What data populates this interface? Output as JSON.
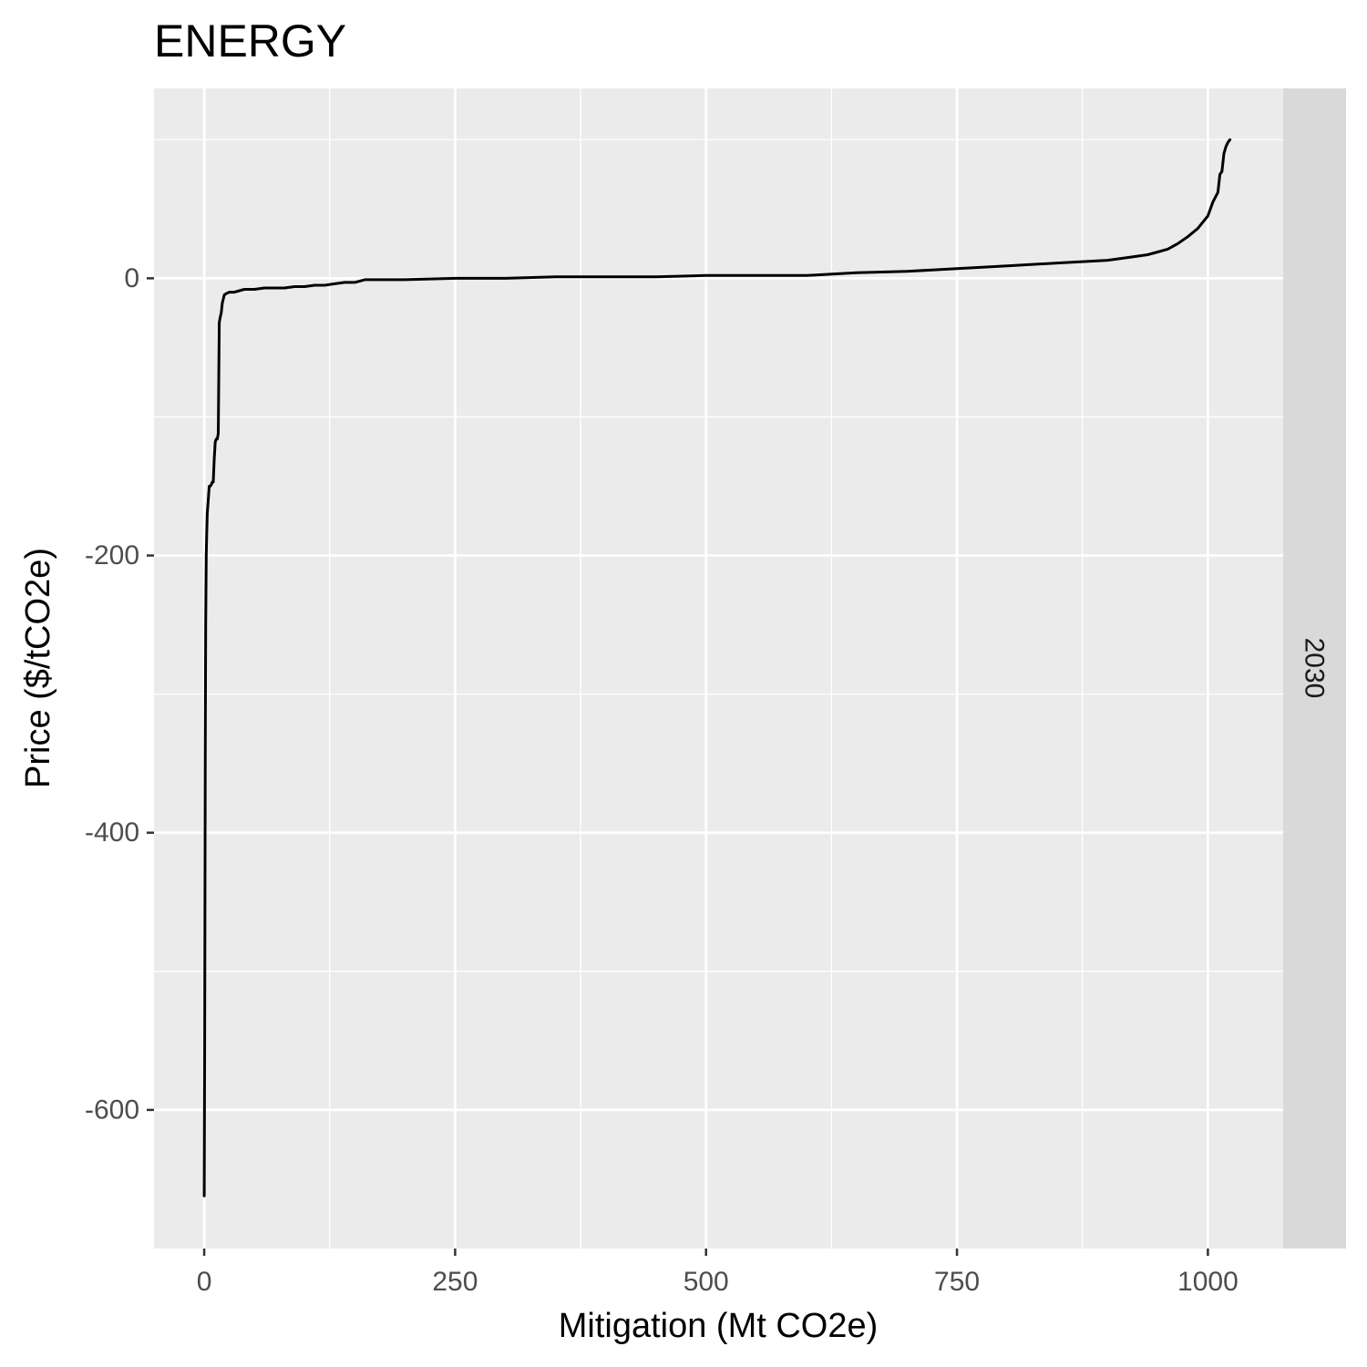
{
  "chart_data": {
    "type": "line",
    "title": "ENERGY",
    "xlabel": "Mitigation (Mt CO2e)",
    "ylabel": "Price ($/tCO2e)",
    "facet_label": "2030",
    "xlim": [
      -50,
      1075
    ],
    "ylim": [
      -700,
      137
    ],
    "x_ticks": [
      0,
      250,
      500,
      750,
      1000
    ],
    "x_tick_labels": [
      "0",
      "250",
      "500",
      "750",
      "1000"
    ],
    "y_ticks": [
      -600,
      -400,
      -200,
      0
    ],
    "y_tick_labels": [
      "-600",
      "-400",
      "-200",
      "0"
    ],
    "x_minor": [
      125,
      375,
      625,
      875
    ],
    "y_minor": [
      -500,
      -300,
      -100,
      100
    ],
    "grid": true,
    "colors": {
      "panel": "#ebebeb",
      "grid": "#ffffff",
      "strip": "#d9d9d9",
      "line": "#000000",
      "tick": "#333333"
    },
    "series": [
      {
        "x": [
          0,
          0,
          0.5,
          1,
          1.5,
          2,
          2.5,
          3,
          4,
          5,
          6,
          7,
          8,
          9,
          10,
          11,
          12,
          12.5,
          13,
          14,
          15,
          16,
          17,
          18,
          20,
          22,
          25,
          30,
          40,
          50,
          60,
          70,
          80,
          90,
          100,
          110,
          120,
          130,
          140,
          150,
          160,
          200,
          250,
          300,
          350,
          400,
          450,
          500,
          550,
          600,
          650,
          700,
          750,
          800,
          850,
          900,
          920,
          940,
          950,
          960,
          970,
          980,
          990,
          1000,
          1005,
          1010,
          1012,
          1014,
          1016,
          1018,
          1020,
          1022
        ],
        "y": [
          -662,
          -659,
          -550,
          -350,
          -250,
          -200,
          -185,
          -170,
          -160,
          -150,
          -150,
          -149,
          -147,
          -147,
          -130,
          -118,
          -116,
          -116,
          -116,
          -112,
          -32,
          -28,
          -25,
          -18,
          -12,
          -11,
          -10,
          -10,
          -8,
          -8,
          -7,
          -7,
          -7,
          -6,
          -6,
          -5,
          -5,
          -4,
          -3,
          -3,
          -1,
          -1,
          0,
          0,
          1,
          1,
          1,
          2,
          2,
          2,
          4,
          5,
          7,
          9,
          11,
          13,
          15,
          17,
          19,
          21,
          25,
          30,
          36,
          45,
          55,
          62,
          75,
          77,
          90,
          95,
          98,
          100
        ]
      }
    ]
  }
}
